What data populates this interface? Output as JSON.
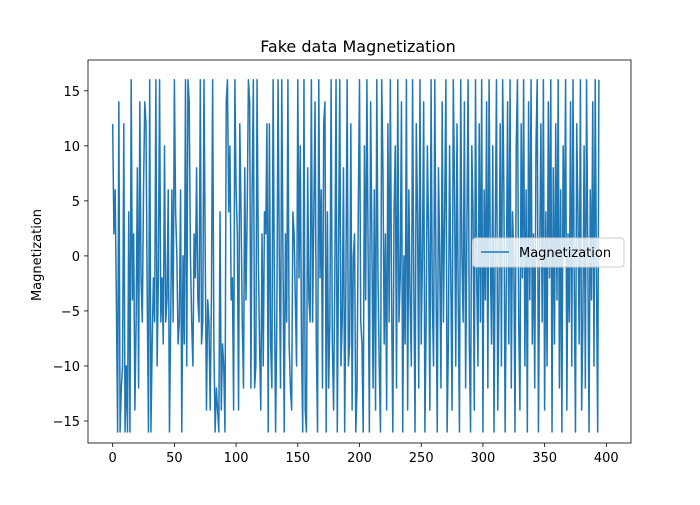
{
  "chart_data": {
    "type": "line",
    "title": "Fake data Magnetization",
    "xlabel": "",
    "ylabel": "Magnetization",
    "xlim": [
      -20,
      420
    ],
    "ylim": [
      -17,
      17.8
    ],
    "xticks": [
      0,
      50,
      100,
      150,
      200,
      250,
      300,
      350,
      400
    ],
    "yticks": [
      -15,
      -10,
      -5,
      0,
      5,
      10,
      15
    ],
    "grid": false,
    "legend_position": "center-right",
    "series": [
      {
        "name": "Magnetization",
        "color": "#1f77b4",
        "x_start": 0,
        "x_step": 1,
        "values": [
          12,
          2,
          6,
          -4,
          -16,
          14,
          -16,
          -12,
          -10,
          12,
          -16,
          -10,
          -16,
          4,
          -16,
          16,
          -4,
          2,
          -14,
          -6,
          8,
          -12,
          14,
          -2,
          -6,
          6,
          14,
          12,
          -4,
          -16,
          16,
          -16,
          -8,
          -2,
          -6,
          16,
          -10,
          -2,
          16,
          -6,
          -2,
          -8,
          10,
          -6,
          -4,
          6,
          -16,
          -6,
          6,
          -6,
          16,
          4,
          0,
          -8,
          -6,
          6,
          -16,
          0,
          -8,
          16,
          -10,
          16,
          14,
          0,
          -6,
          -10,
          2,
          -2,
          8,
          -4,
          -6,
          16,
          -8,
          -6,
          16,
          0,
          -14,
          -4,
          -6,
          -14,
          -4,
          16,
          -8,
          -16,
          -12,
          -14,
          -16,
          4,
          -14,
          -8,
          -10,
          -16,
          14,
          16,
          4,
          10,
          -4,
          -2,
          -14,
          16,
          6,
          2,
          -14,
          12,
          4,
          -6,
          -12,
          8,
          -4,
          4,
          16,
          14,
          -12,
          6,
          16,
          -12,
          -10,
          16,
          0,
          -8,
          -14,
          2,
          -10,
          4,
          2,
          12,
          -16,
          12,
          -8,
          -12,
          16,
          -2,
          -16,
          -6,
          16,
          0,
          -12,
          16,
          0,
          -16,
          2,
          -6,
          16,
          -8,
          -12,
          -14,
          4,
          2,
          -4,
          -10,
          16,
          -2,
          10,
          -8,
          -16,
          16,
          -14,
          -16,
          8,
          -4,
          -6,
          16,
          -6,
          4,
          14,
          -8,
          -16,
          16,
          -2,
          6,
          -12,
          12,
          14,
          -16,
          4,
          -12,
          -6,
          16,
          -8,
          -14,
          -2,
          16,
          -16,
          0,
          16,
          -10,
          -6,
          8,
          -16,
          -2,
          16,
          -10,
          -8,
          12,
          -14,
          0,
          2,
          -16,
          -12,
          4,
          16,
          -6,
          -8,
          -16,
          10,
          -4,
          16,
          0,
          -16,
          14,
          2,
          -12,
          6,
          -14,
          16,
          -2,
          -10,
          -16,
          16,
          8,
          -8,
          2,
          -14,
          12,
          -6,
          16,
          -4,
          -16,
          4,
          10,
          -12,
          16,
          -6,
          -2,
          14,
          -16,
          0,
          -8,
          16,
          -14,
          6,
          -4,
          -10,
          16,
          -2,
          -16,
          12,
          4,
          -12,
          16,
          -8,
          0,
          14,
          -16,
          -6,
          10,
          2,
          -14,
          16,
          -4,
          -10,
          16,
          -2,
          -16,
          8,
          0,
          -12,
          14,
          -6,
          4,
          16,
          -16,
          -8,
          10,
          -2,
          -14,
          16,
          6,
          -10,
          12,
          -4,
          -16,
          16,
          0,
          -6,
          14,
          -12,
          2,
          16,
          -8,
          -16,
          10,
          4,
          -14,
          16,
          -2,
          -10,
          12,
          -6,
          16,
          -16,
          6,
          -4,
          14,
          -12,
          16,
          0,
          -8,
          10,
          -16,
          2,
          16,
          -14,
          -4,
          12,
          -10,
          16,
          6,
          -16,
          -2,
          14,
          -8,
          16,
          -12,
          4,
          0,
          -16,
          10,
          16,
          -6,
          -14,
          12,
          -2,
          16,
          -10,
          6,
          -16,
          14,
          -4,
          16,
          -8,
          2,
          -12,
          10,
          16,
          -16,
          0,
          12,
          -6,
          16,
          -14,
          4,
          -10,
          14,
          -2,
          16,
          -16,
          8,
          -8,
          12,
          -4,
          16,
          -12,
          6,
          -16,
          10,
          0,
          16,
          -14,
          2,
          -6,
          14,
          -10,
          16,
          -2,
          -16,
          12,
          4,
          -8,
          16,
          -14,
          -6,
          10,
          -12,
          16,
          0,
          -16,
          6,
          -4,
          14,
          -10,
          16,
          -2,
          -16,
          16
        ]
      }
    ]
  }
}
